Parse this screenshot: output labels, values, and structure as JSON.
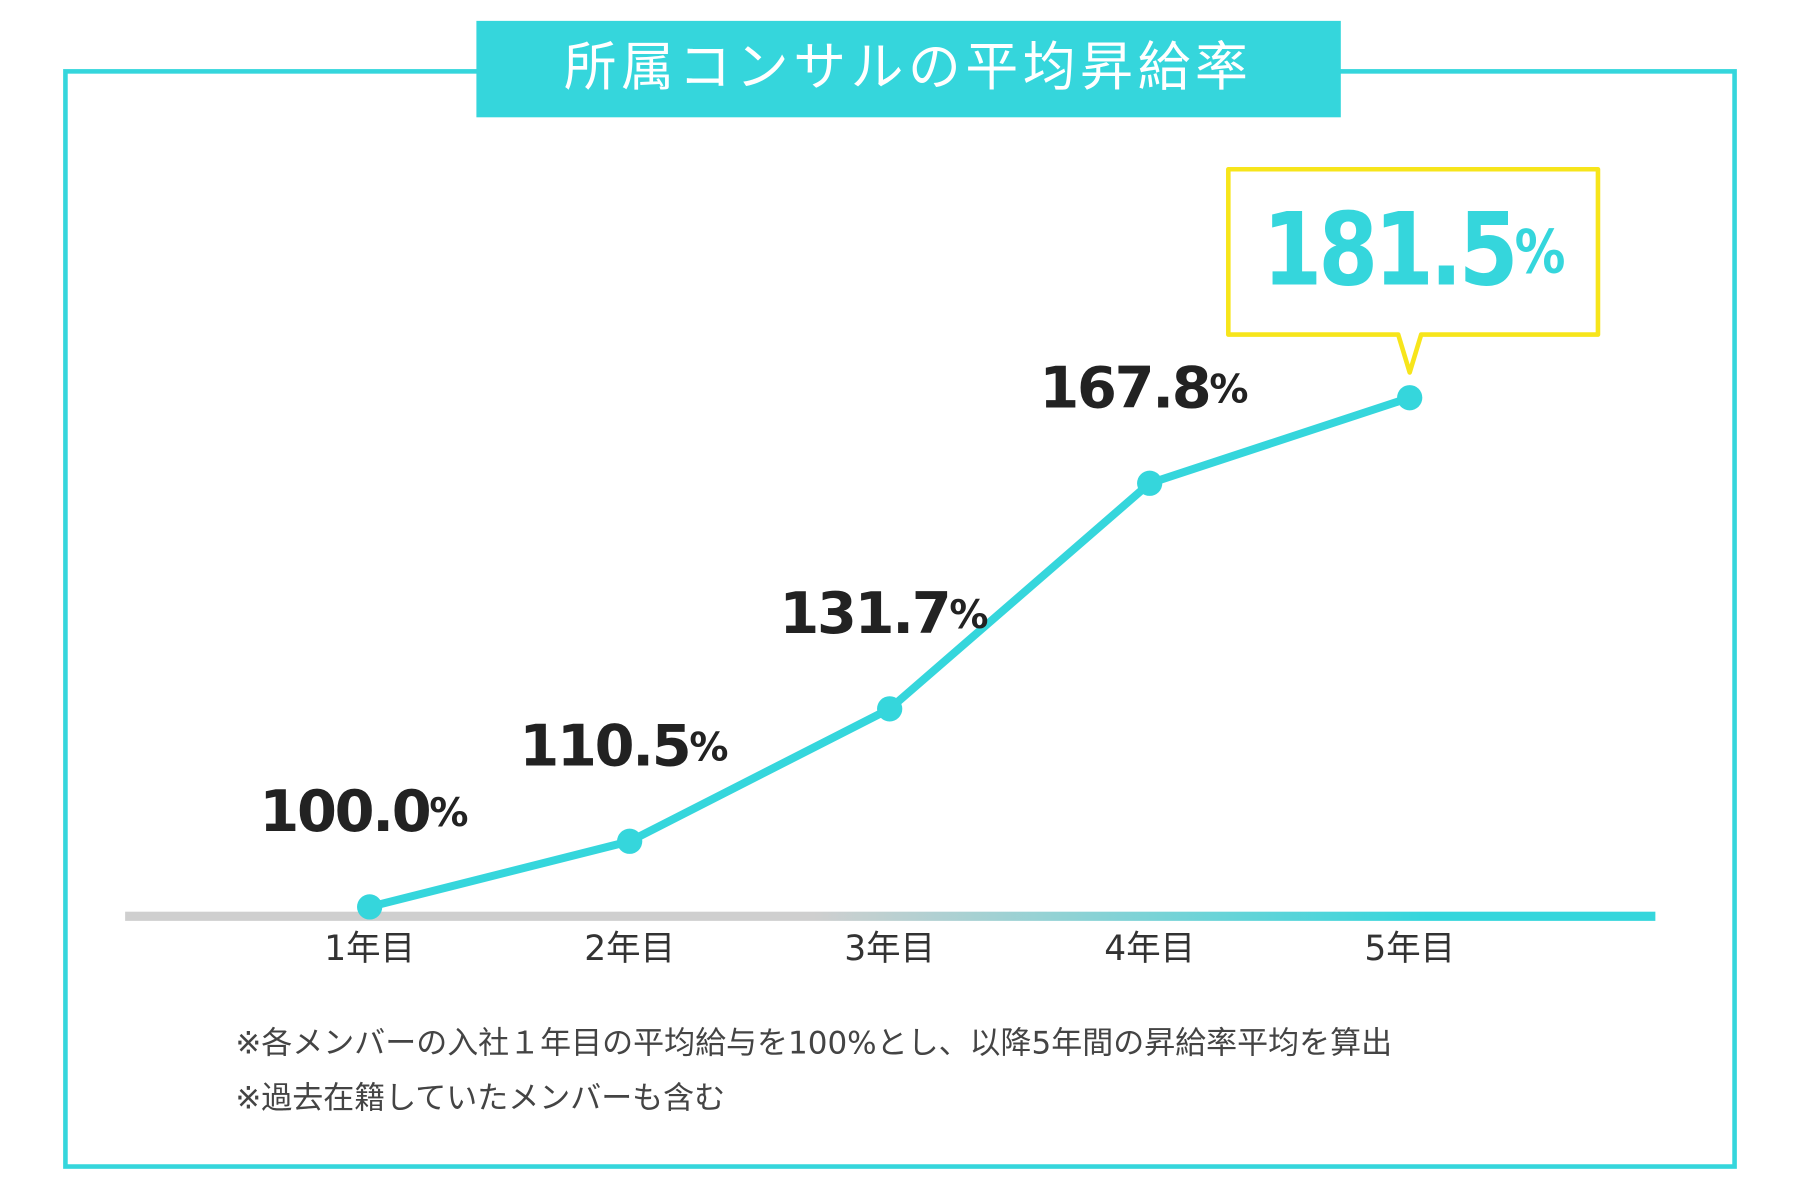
{
  "chart_data": {
    "type": "line",
    "title": "所属コンサルの平均昇給率",
    "categories": [
      "1年目",
      "2年目",
      "3年目",
      "4年目",
      "5年目"
    ],
    "values": [
      100.0,
      110.5,
      131.7,
      167.8,
      181.5
    ],
    "value_labels": [
      "100.0%",
      "110.5%",
      "131.7%",
      "167.8%",
      "181.5%"
    ],
    "color": "#35d6dc",
    "callout_border_color": "#f7e51b",
    "ylim": [
      98.5,
      190
    ],
    "notes": [
      "※各メンバーの入社１年目の平均給与を100%とし、以降5年間の昇給率平均を算出",
      "※過去在籍していたメンバーも含む"
    ]
  }
}
